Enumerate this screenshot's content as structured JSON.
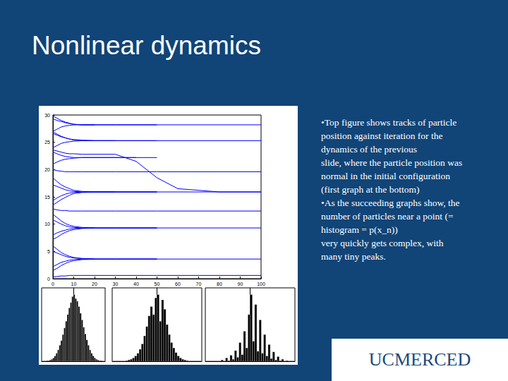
{
  "slide": {
    "title": "Nonlinear dynamics",
    "bullets": [
      [
        "•Top figure shows tracks of particle",
        "position against iteration for the",
        "dynamics of the previous",
        "slide, where the particle position was",
        "normal in the initial configuration",
        "(first graph at the bottom)"
      ],
      [
        "•As the succeeding graphs show, the",
        "number of particles near a point (=",
        "histogram = p(x_n))",
        "very quickly gets complex, with",
        "many tiny peaks."
      ]
    ],
    "logo": "UCMERCED"
  },
  "chart_data": [
    {
      "type": "line",
      "color": "#0000ff",
      "grid": false,
      "xlim": [
        0,
        100
      ],
      "xticks": [
        0,
        10,
        20,
        30,
        40,
        50,
        60,
        70,
        80,
        90,
        100
      ],
      "ylim": [
        0,
        30
      ],
      "yticks": [
        0,
        5,
        10,
        15,
        20,
        25,
        30
      ],
      "x": [
        0,
        2,
        4,
        6,
        8,
        10,
        14,
        20,
        30,
        40,
        50,
        60,
        80,
        100
      ],
      "series": [
        {
          "values": [
            29.8,
            29.4,
            29.0,
            28.7,
            28.5,
            28.3,
            28.2,
            28.2,
            28.2,
            28.2,
            28.2,
            null,
            null,
            null
          ]
        },
        {
          "values": [
            27.0,
            27.4,
            27.8,
            28.0,
            28.1,
            28.2,
            28.2,
            28.2,
            28.2,
            28.2,
            28.2,
            28.2,
            28.2,
            28.2
          ]
        },
        {
          "values": [
            29.3,
            29.0,
            28.8,
            28.6,
            28.4,
            28.3,
            28.2,
            28.2,
            null,
            null,
            null,
            null,
            null,
            null
          ]
        },
        {
          "values": [
            26.6,
            26.3,
            26.0,
            25.8,
            25.6,
            25.4,
            25.3,
            25.3,
            25.3,
            25.3,
            25.3,
            25.3,
            25.3,
            25.3
          ]
        },
        {
          "values": [
            24.0,
            24.4,
            24.8,
            25.0,
            25.1,
            25.2,
            25.3,
            25.3,
            25.3,
            25.3,
            25.3,
            null,
            null,
            null
          ]
        },
        {
          "values": [
            26.9,
            26.5,
            26.1,
            25.8,
            25.6,
            25.5,
            25.4,
            25.3,
            25.3,
            null,
            null,
            null,
            null,
            null
          ]
        },
        {
          "values": [
            23.2,
            22.9,
            22.6,
            22.4,
            22.3,
            22.2,
            22.2,
            22.2,
            22.2,
            22.2,
            22.2,
            null,
            null,
            null
          ]
        },
        {
          "values": [
            21.0,
            21.4,
            21.7,
            21.9,
            22.0,
            22.1,
            22.2,
            22.2,
            22.2,
            22.2,
            null,
            null,
            null,
            null
          ]
        },
        {
          "values": [
            23.6,
            23.4,
            23.2,
            23.0,
            22.9,
            22.9,
            22.8,
            22.8,
            22.8,
            21.5,
            18.5,
            16.5,
            15.9,
            15.9
          ]
        },
        {
          "values": [
            20.0,
            19.8,
            19.7,
            19.6,
            19.6,
            19.6,
            19.6,
            19.6,
            19.6,
            19.6,
            19.6,
            19.6,
            19.6,
            19.6
          ]
        },
        {
          "values": [
            18.5,
            17.8,
            17.2,
            16.8,
            16.5,
            16.2,
            16.0,
            15.9,
            15.9,
            15.9,
            15.9,
            null,
            null,
            null
          ]
        },
        {
          "values": [
            17.2,
            16.9,
            16.6,
            16.3,
            16.1,
            16.0,
            15.9,
            15.9,
            15.9,
            15.9,
            15.9,
            15.9,
            15.9,
            15.9
          ]
        },
        {
          "values": [
            14.3,
            14.8,
            15.2,
            15.5,
            15.7,
            15.8,
            15.9,
            15.9,
            15.9,
            15.9,
            15.9,
            null,
            null,
            null
          ]
        },
        {
          "values": [
            13.5,
            14.0,
            14.5,
            14.9,
            15.3,
            15.6,
            15.8,
            15.9,
            15.9,
            null,
            null,
            null,
            null,
            null
          ]
        },
        {
          "values": [
            12.8,
            12.6,
            12.5,
            12.5,
            12.4,
            12.4,
            12.4,
            12.4,
            12.4,
            12.4,
            12.4,
            12.4,
            12.4,
            12.4
          ]
        },
        {
          "values": [
            11.8,
            11.2,
            10.6,
            10.1,
            9.8,
            9.6,
            9.4,
            9.3,
            9.3,
            9.3,
            9.3,
            null,
            null,
            null
          ]
        },
        {
          "values": [
            10.8,
            10.4,
            10.0,
            9.7,
            9.5,
            9.4,
            9.3,
            9.3,
            9.3,
            9.3,
            9.3,
            9.3,
            9.3,
            9.3
          ]
        },
        {
          "values": [
            8.0,
            8.4,
            8.7,
            8.9,
            9.1,
            9.2,
            9.3,
            9.3,
            9.3,
            9.3,
            9.3,
            null,
            null,
            null
          ]
        },
        {
          "values": [
            7.2,
            7.6,
            8.1,
            8.5,
            8.8,
            9.0,
            9.2,
            9.3,
            null,
            null,
            null,
            null,
            null,
            null
          ]
        },
        {
          "values": [
            6.0,
            5.4,
            4.8,
            4.4,
            4.1,
            3.9,
            3.7,
            3.6,
            3.6,
            3.6,
            3.6,
            null,
            null,
            null
          ]
        },
        {
          "values": [
            5.0,
            4.7,
            4.4,
            4.1,
            3.9,
            3.8,
            3.7,
            3.6,
            3.6,
            3.6,
            3.6,
            3.6,
            3.6,
            3.6
          ]
        },
        {
          "values": [
            2.2,
            2.6,
            3.0,
            3.2,
            3.4,
            3.5,
            3.6,
            3.6,
            3.6,
            3.6,
            3.6,
            null,
            null,
            null
          ]
        },
        {
          "values": [
            1.5,
            1.9,
            2.4,
            2.8,
            3.1,
            3.3,
            3.5,
            3.6,
            null,
            null,
            null,
            null,
            null,
            null
          ]
        },
        {
          "values": [
            0.3,
            0.4,
            0.5,
            0.5,
            0.6,
            0.6,
            0.6,
            0.6,
            0.6,
            0.6,
            0.6,
            0.6,
            0.6,
            0.6
          ]
        }
      ]
    },
    {
      "type": "histogram",
      "color": "#000000",
      "grid": false,
      "tick_labels": false,
      "xlim": [
        -4,
        4
      ],
      "ylim": [
        0,
        110
      ],
      "bins": [
        -4,
        -3.8,
        -3.6,
        -3.4,
        -3.2,
        -3,
        -2.8,
        -2.6,
        -2.4,
        -2.2,
        -2,
        -1.8,
        -1.6,
        -1.4,
        -1.2,
        -1,
        -0.8,
        -0.6,
        -0.4,
        -0.2,
        0,
        0.2,
        0.4,
        0.6,
        0.8,
        1,
        1.2,
        1.4,
        1.6,
        1.8,
        2,
        2.2,
        2.4,
        2.6,
        2.8,
        3,
        3.2,
        3.4,
        3.6,
        3.8,
        4
      ],
      "values": [
        0,
        0,
        0,
        1,
        1,
        2,
        3,
        5,
        8,
        12,
        17,
        24,
        31,
        40,
        50,
        60,
        70,
        80,
        88,
        97,
        100,
        94,
        90,
        82,
        72,
        62,
        51,
        41,
        32,
        24,
        17,
        12,
        8,
        5,
        3,
        2,
        1,
        1,
        0,
        0
      ]
    },
    {
      "type": "histogram",
      "color": "#000000",
      "grid": false,
      "tick_labels": false,
      "xlim": [
        -4,
        4
      ],
      "ylim": [
        0,
        110
      ],
      "bins": [
        -4,
        -3.8,
        -3.6,
        -3.4,
        -3.2,
        -3,
        -2.8,
        -2.6,
        -2.4,
        -2.2,
        -2,
        -1.8,
        -1.6,
        -1.4,
        -1.2,
        -1,
        -0.8,
        -0.6,
        -0.4,
        -0.2,
        0,
        0.2,
        0.4,
        0.6,
        0.8,
        1,
        1.2,
        1.4,
        1.6,
        1.8,
        2,
        2.2,
        2.4,
        2.6,
        2.8,
        3,
        3.2,
        3.4,
        3.6,
        3.8,
        4
      ],
      "values": [
        0,
        0,
        0,
        0,
        0,
        0,
        1,
        2,
        3,
        5,
        8,
        12,
        18,
        26,
        38,
        52,
        68,
        82,
        70,
        95,
        100,
        60,
        92,
        78,
        55,
        40,
        28,
        20,
        13,
        8,
        5,
        3,
        2,
        1,
        0,
        0,
        0,
        0,
        0,
        0
      ]
    },
    {
      "type": "histogram",
      "color": "#000000",
      "grid": false,
      "tick_labels": false,
      "xlim": [
        -4,
        4
      ],
      "ylim": [
        0,
        110
      ],
      "bins": [
        -4,
        -3.8,
        -3.6,
        -3.4,
        -3.2,
        -3,
        -2.8,
        -2.6,
        -2.4,
        -2.2,
        -2,
        -1.8,
        -1.6,
        -1.4,
        -1.2,
        -1,
        -0.8,
        -0.6,
        -0.4,
        -0.2,
        0,
        0.2,
        0.4,
        0.6,
        0.8,
        1,
        1.2,
        1.4,
        1.6,
        1.8,
        2,
        2.2,
        2.4,
        2.6,
        2.8,
        3,
        3.2,
        3.4,
        3.6,
        3.8,
        4
      ],
      "values": [
        0,
        0,
        0,
        0,
        0,
        0,
        0,
        2,
        0,
        5,
        1,
        9,
        3,
        16,
        6,
        28,
        10,
        45,
        20,
        70,
        100,
        30,
        85,
        15,
        62,
        12,
        40,
        8,
        25,
        4,
        14,
        2,
        7,
        1,
        3,
        0,
        1,
        0,
        0,
        0
      ]
    }
  ]
}
